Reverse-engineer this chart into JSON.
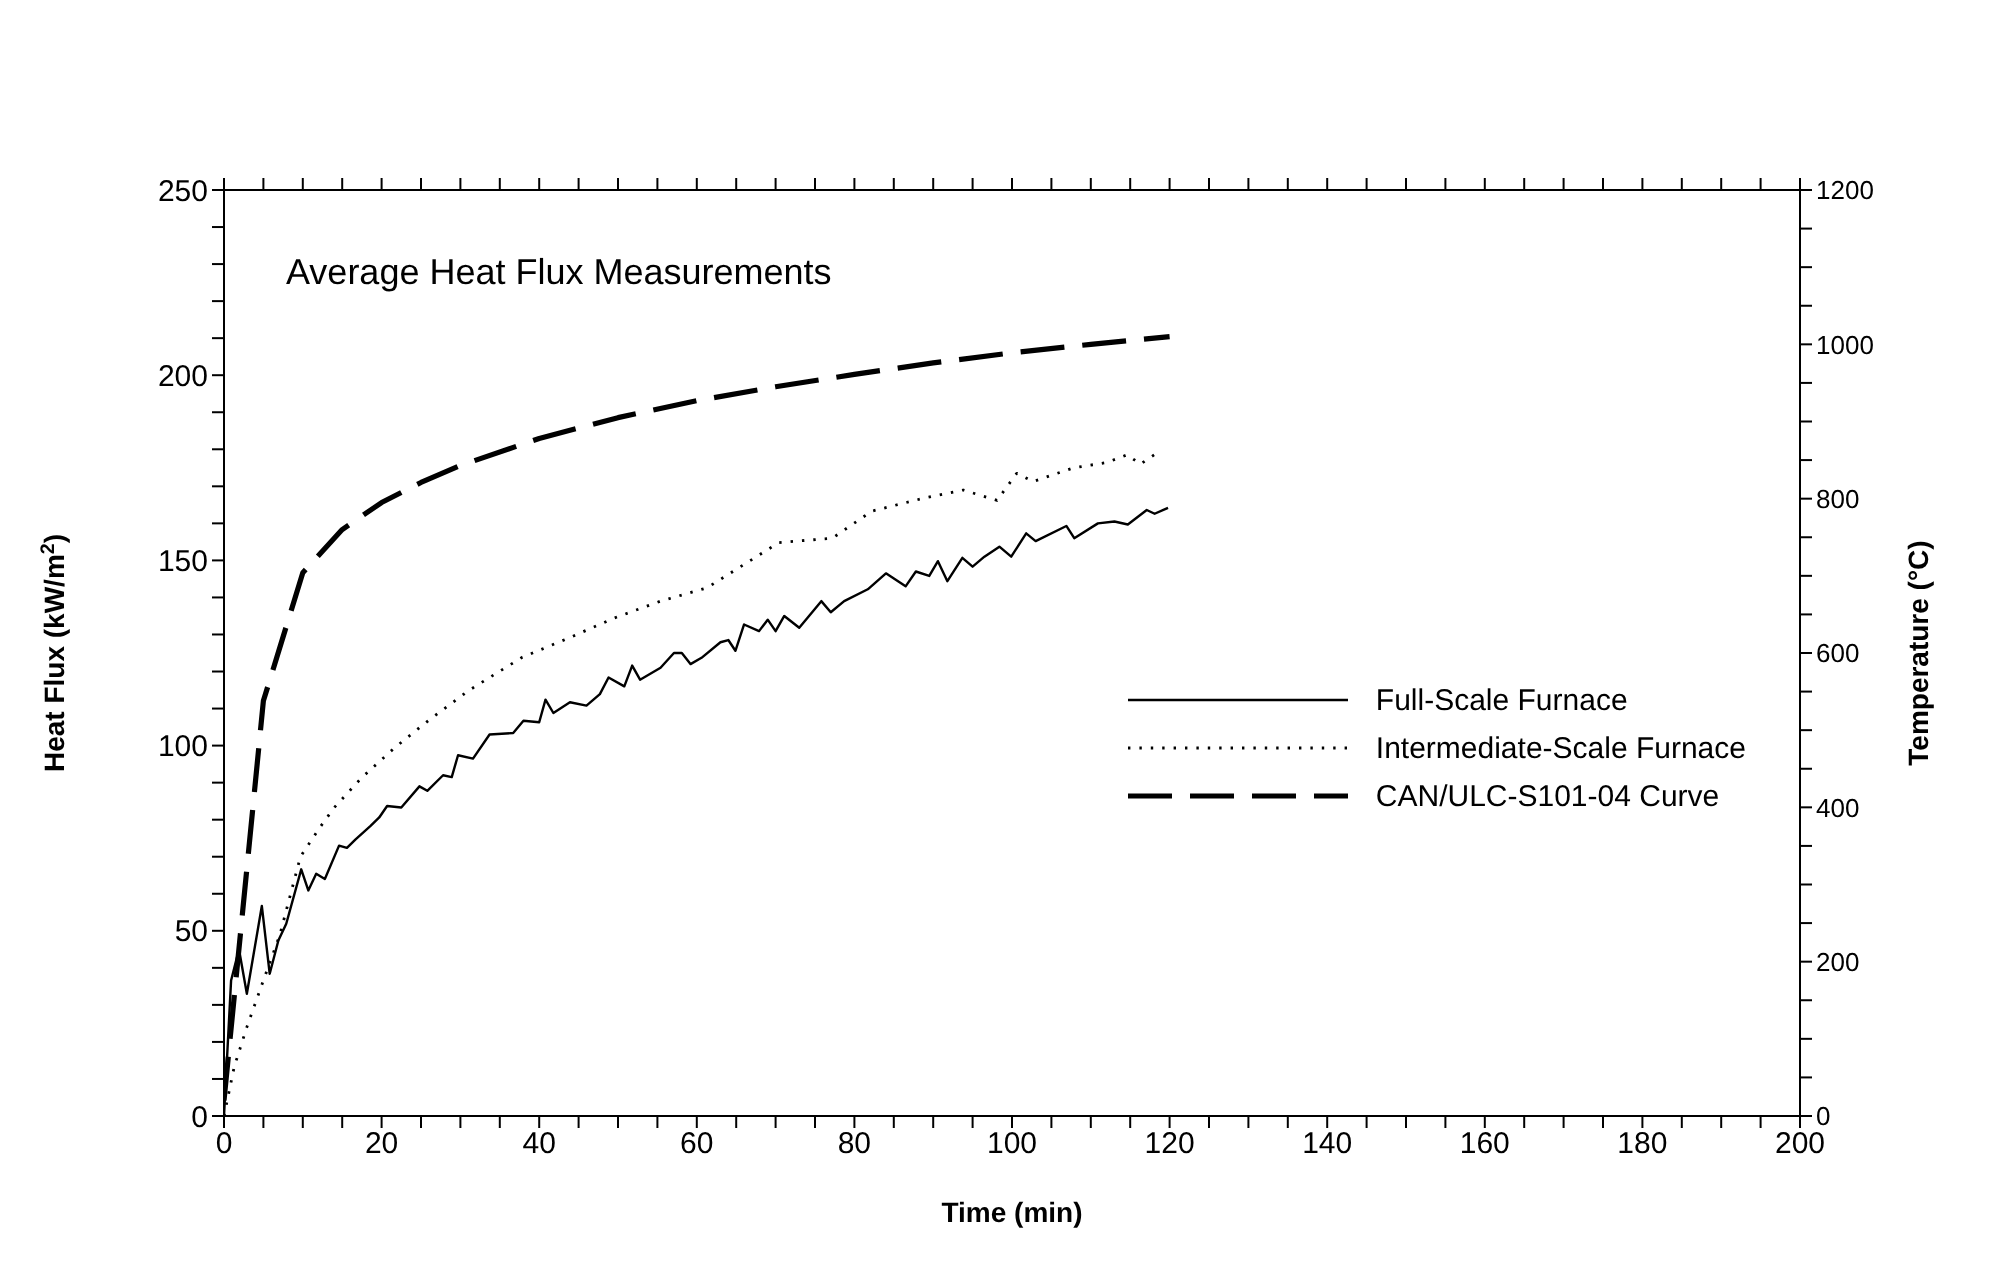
{
  "chart_data": {
    "type": "line",
    "title": "Average Heat Flux Measurements",
    "xlabel": "Time (min)",
    "ylabel": "Heat Flux (kW/m$^{2}$)",
    "y2label": "Temperature (°C)",
    "xlim": [
      0,
      200
    ],
    "ylim": [
      0,
      250
    ],
    "y2lim": [
      0,
      1200
    ],
    "xticks": [
      0,
      {
        "value": 5,
        "label": null
      },
      {
        "value": 10,
        "label": null
      },
      {
        "value": 15,
        "label": null
      },
      20,
      {
        "value": 25,
        "label": null
      },
      {
        "value": 30,
        "label": null
      },
      {
        "value": 35,
        "label": null
      },
      40,
      {
        "value": 45,
        "label": null
      },
      {
        "value": 50,
        "label": null
      },
      {
        "value": 55,
        "label": null
      },
      60,
      {
        "value": 65,
        "label": null
      },
      {
        "value": 70,
        "label": null
      },
      {
        "value": 75,
        "label": null
      },
      80,
      {
        "value": 85,
        "label": null
      },
      {
        "value": 90,
        "label": null
      },
      {
        "value": 95,
        "label": null
      },
      100,
      {
        "value": 105,
        "label": null
      },
      {
        "value": 110,
        "label": null
      },
      {
        "value": 115,
        "label": null
      },
      120,
      {
        "value": 125,
        "label": null
      },
      {
        "value": 130,
        "label": null
      },
      {
        "value": 135,
        "label": null
      },
      140,
      {
        "value": 145,
        "label": null
      },
      {
        "value": 150,
        "label": null
      },
      {
        "value": 155,
        "label": null
      },
      160,
      {
        "value": 165,
        "label": null
      },
      {
        "value": 170,
        "label": null
      },
      {
        "value": 175,
        "label": null
      },
      180,
      {
        "value": 185,
        "label": null
      },
      {
        "value": 190,
        "label": null
      },
      {
        "value": 195,
        "label": null
      },
      200
    ],
    "yticks": [
      0,
      {
        "value": 10,
        "label": null
      },
      {
        "value": 20,
        "label": null
      },
      {
        "value": 30,
        "label": null
      },
      {
        "value": 40,
        "label": null
      },
      50,
      {
        "value": 60,
        "label": null
      },
      {
        "value": 70,
        "label": null
      },
      {
        "value": 80,
        "label": null
      },
      {
        "value": 90,
        "label": null
      },
      100,
      {
        "value": 110,
        "label": null
      },
      {
        "value": 120,
        "label": null
      },
      {
        "value": 130,
        "label": null
      },
      {
        "value": 140,
        "label": null
      },
      150,
      {
        "value": 160,
        "label": null
      },
      {
        "value": 170,
        "label": null
      },
      {
        "value": 180,
        "label": null
      },
      {
        "value": 190,
        "label": null
      },
      200,
      {
        "value": 210,
        "label": null
      },
      {
        "value": 220,
        "label": null
      },
      {
        "value": 230,
        "label": null
      },
      {
        "value": 240,
        "label": null
      },
      250
    ],
    "y2ticks": [
      0,
      {
        "value": 50,
        "label": null
      },
      {
        "value": 100,
        "label": null
      },
      {
        "value": 150,
        "label": null
      },
      200,
      {
        "value": 250,
        "label": null
      },
      {
        "value": 300,
        "label": null
      },
      {
        "value": 350,
        "label": null
      },
      400,
      {
        "value": 450,
        "label": null
      },
      {
        "value": 500,
        "label": null
      },
      {
        "value": 550,
        "label": null
      },
      600,
      {
        "value": 650,
        "label": null
      },
      {
        "value": 700,
        "label": null
      },
      {
        "value": 750,
        "label": null
      },
      800,
      {
        "value": 850,
        "label": null
      },
      {
        "value": 900,
        "label": null
      },
      {
        "value": 950,
        "label": null
      },
      1000,
      {
        "value": 1050,
        "label": null
      },
      {
        "value": 1100,
        "label": null
      },
      {
        "value": 1150,
        "label": null
      },
      1200
    ],
    "legend": "right",
    "marker": "none",
    "series": [
      {
        "name": "Full-Scale Furnace",
        "color": "#000000",
        "line_style": "solid",
        "x": [
          0,
          0.9,
          1.9,
          2.9,
          4.8,
          5.8,
          6.9,
          7.9,
          9.8,
          10.7,
          11.7,
          12.8,
          14.6,
          15.6,
          16.7,
          18.6,
          19.7,
          20.7,
          22.5,
          24.8,
          25.8,
          27.8,
          28.9,
          29.7,
          31.6,
          33.7,
          36.7,
          38,
          40,
          40.8,
          41.8,
          43.9,
          46,
          47.7,
          48.8,
          50.8,
          51.8,
          52.8,
          55.4,
          57.1,
          58.1,
          59.2,
          60.6,
          63,
          64,
          64.9,
          66,
          67.9,
          69,
          70,
          71.1,
          73,
          75.8,
          77,
          78.7,
          81.7,
          84,
          86.5,
          87.8,
          89.5,
          90.6,
          91.8,
          93.7,
          95,
          96.5,
          98.4,
          99.9,
          101.8,
          103,
          106.9,
          107.9,
          110.9,
          113,
          114.7,
          117.1,
          118.1,
          119.8
        ],
        "values": [
          0,
          36.6,
          45,
          33,
          56.7,
          38.4,
          47.4,
          51.9,
          66.6,
          60.9,
          65.4,
          64,
          73,
          72.4,
          74.7,
          78.3,
          80.6,
          83.7,
          83.3,
          89,
          87.8,
          92,
          91.5,
          97.4,
          96.5,
          103,
          103.4,
          106.7,
          106.3,
          112.4,
          108.8,
          111.7,
          110.8,
          113.9,
          118.4,
          116,
          121.6,
          117.8,
          121,
          125,
          125,
          122,
          123.7,
          127.9,
          128.5,
          125.6,
          132.7,
          130.9,
          134,
          130.9,
          135,
          131.8,
          139,
          136,
          139,
          142.2,
          146.5,
          143,
          147,
          145.8,
          149.8,
          144.4,
          150.7,
          148.3,
          151,
          153.7,
          151,
          157.3,
          155.2,
          159.3,
          156,
          160,
          160.5,
          159.7,
          163.6,
          162.6,
          164.2
        ]
      },
      {
        "name": "Intermediate-Scale Furnace",
        "color": "#000000",
        "line_style": "dotted",
        "x": [
          0,
          1.3,
          2.9,
          5,
          7.1,
          9.7,
          12.2,
          14,
          17.5,
          21.7,
          25.9,
          31,
          37.8,
          43.7,
          49.6,
          55.4,
          61.3,
          70.4,
          77.2,
          82.2,
          89,
          93.8,
          98.1,
          100.6,
          102.7,
          107.8,
          112,
          114.6,
          116.3,
          118.4
        ],
        "values": [
          0,
          13.3,
          24,
          36.6,
          49,
          70,
          78,
          83.3,
          91.4,
          99.5,
          106.7,
          114.8,
          123.8,
          129,
          134.5,
          139,
          142.6,
          154.8,
          156,
          163.3,
          166.9,
          169,
          166.2,
          173.5,
          171.3,
          175,
          176.4,
          178.5,
          176,
          179
        ]
      },
      {
        "name": "CAN/ULC-S101-04 Curve",
        "color": "#000000",
        "line_style": "dashed",
        "axis": "y2",
        "x": [
          0,
          5,
          10,
          15,
          20,
          25,
          30,
          40,
          50,
          60,
          70,
          80,
          90,
          100,
          110,
          120
        ],
        "values": [
          20,
          538,
          704,
          760,
          795,
          821,
          843,
          878,
          905,
          927,
          945,
          961,
          976,
          989,
          1000,
          1010
        ]
      }
    ]
  }
}
